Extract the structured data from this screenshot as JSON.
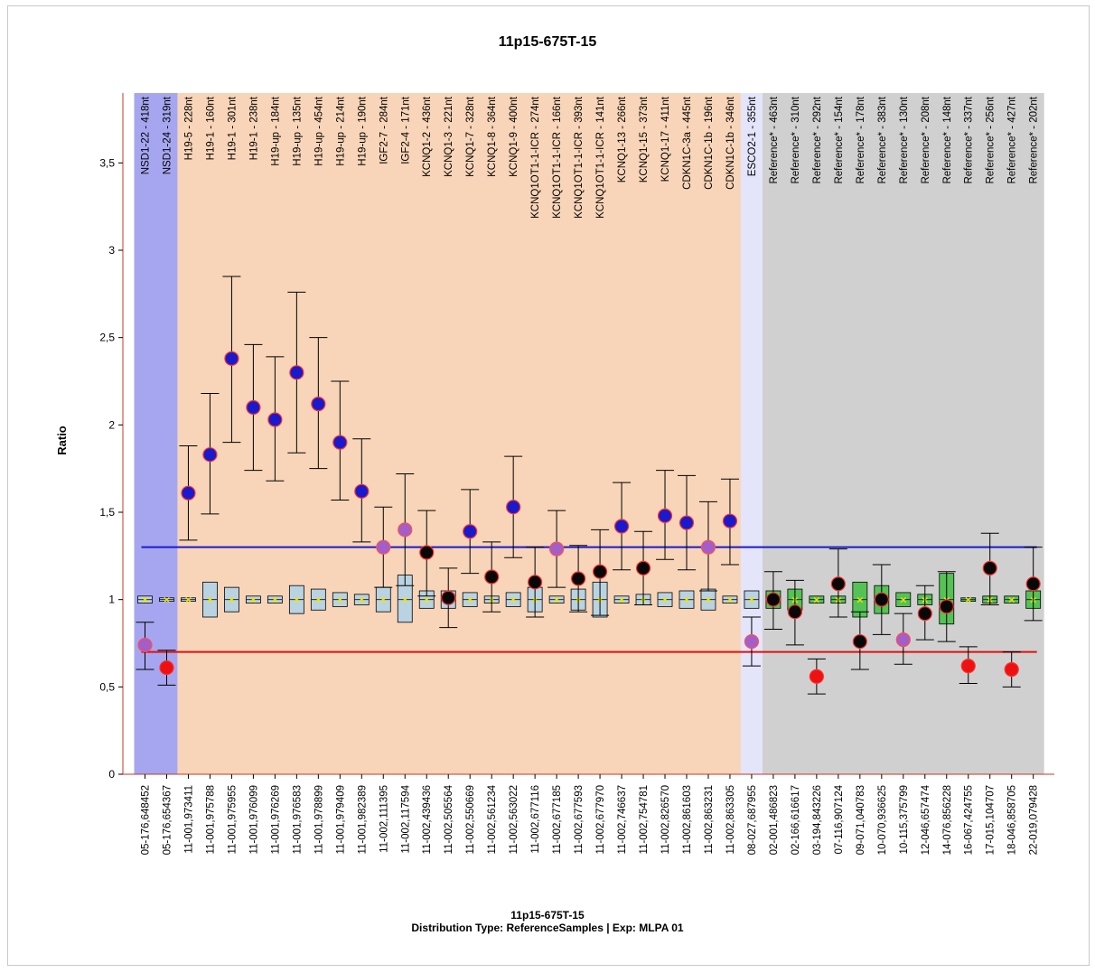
{
  "chart_data": {
    "type": "scatter",
    "title": "11p15-675T-15",
    "ylabel": "Ratio",
    "xlabel": "",
    "ylim": [
      0,
      3.9
    ],
    "yticks": [
      "0",
      "0,5",
      "1",
      "1,5",
      "2",
      "2,5",
      "3",
      "3,5"
    ],
    "footer": {
      "title": "11p15-675T-15",
      "subtitle": "Distribution Type: ReferenceSamples | Exp: MLPA 01"
    },
    "thresholds": [
      {
        "value": 1.3,
        "color": "#1a1acc"
      },
      {
        "value": 0.7,
        "color": "#dd1111"
      }
    ],
    "probes": [
      {
        "name": "NSD1-22 - 418nt",
        "pos": "05-176,648452",
        "ratio": 0.74,
        "lo": 0.6,
        "hi": 0.87,
        "box": [
          0.98,
          1.02
        ],
        "group": "nsd1",
        "dot": "purple"
      },
      {
        "name": "NSD1-24 - 319nt",
        "pos": "05-176,654367",
        "ratio": 0.61,
        "lo": 0.51,
        "hi": 0.71,
        "box": [
          0.99,
          1.01
        ],
        "group": "nsd1",
        "dot": "red"
      },
      {
        "name": "H19-5 - 228nt",
        "pos": "11-001,973411",
        "ratio": 1.61,
        "lo": 1.34,
        "hi": 1.88,
        "box": [
          0.99,
          1.01
        ],
        "group": "target",
        "dot": "blue"
      },
      {
        "name": "H19-1 - 160nt",
        "pos": "11-001,975788",
        "ratio": 1.83,
        "lo": 1.49,
        "hi": 2.18,
        "box": [
          0.9,
          1.1
        ],
        "group": "target",
        "dot": "blue"
      },
      {
        "name": "H19-1 - 301nt",
        "pos": "11-001,975955",
        "ratio": 2.38,
        "lo": 1.9,
        "hi": 2.85,
        "box": [
          0.93,
          1.07
        ],
        "group": "target",
        "dot": "blue"
      },
      {
        "name": "H19-1 - 238nt",
        "pos": "11-001,976099",
        "ratio": 2.1,
        "lo": 1.74,
        "hi": 2.46,
        "box": [
          0.98,
          1.02
        ],
        "group": "target",
        "dot": "blue"
      },
      {
        "name": "H19-up - 184nt",
        "pos": "11-001,976269",
        "ratio": 2.03,
        "lo": 1.68,
        "hi": 2.39,
        "box": [
          0.98,
          1.02
        ],
        "group": "target",
        "dot": "blue"
      },
      {
        "name": "H19-up - 135nt",
        "pos": "11-001,976583",
        "ratio": 2.3,
        "lo": 1.84,
        "hi": 2.76,
        "box": [
          0.92,
          1.08
        ],
        "group": "target",
        "dot": "blue"
      },
      {
        "name": "H19-up - 454nt",
        "pos": "11-001,978899",
        "ratio": 2.12,
        "lo": 1.75,
        "hi": 2.5,
        "box": [
          0.94,
          1.06
        ],
        "group": "target",
        "dot": "blue"
      },
      {
        "name": "H19-up - 214nt",
        "pos": "11-001,979409",
        "ratio": 1.9,
        "lo": 1.57,
        "hi": 2.25,
        "box": [
          0.96,
          1.04
        ],
        "group": "target",
        "dot": "blue"
      },
      {
        "name": "H19-up - 190nt",
        "pos": "11-001,982389",
        "ratio": 1.62,
        "lo": 1.33,
        "hi": 1.92,
        "box": [
          0.97,
          1.03
        ],
        "group": "target",
        "dot": "blue"
      },
      {
        "name": "IGF2-7 - 284nt",
        "pos": "11-002,111395",
        "ratio": 1.3,
        "lo": 1.07,
        "hi": 1.53,
        "box": [
          0.93,
          1.07
        ],
        "group": "target",
        "dot": "purple"
      },
      {
        "name": "IGF2-4 - 171nt",
        "pos": "11-002,117594",
        "ratio": 1.4,
        "lo": 1.08,
        "hi": 1.72,
        "box": [
          0.87,
          1.14
        ],
        "group": "target",
        "dot": "purple"
      },
      {
        "name": "KCNQ1-2 - 436nt",
        "pos": "11-002,439436",
        "ratio": 1.27,
        "lo": 1.02,
        "hi": 1.51,
        "box": [
          0.95,
          1.05
        ],
        "group": "target",
        "dot": "black"
      },
      {
        "name": "KCNQ1-3 - 221nt",
        "pos": "11-002,505564",
        "ratio": 1.01,
        "lo": 0.84,
        "hi": 1.18,
        "box": [
          0.95,
          1.05
        ],
        "group": "target",
        "dot": "black"
      },
      {
        "name": "KCNQ1-7 - 328nt",
        "pos": "11-002,550669",
        "ratio": 1.39,
        "lo": 1.15,
        "hi": 1.63,
        "box": [
          0.96,
          1.04
        ],
        "group": "target",
        "dot": "blue"
      },
      {
        "name": "KCNQ1-8 - 364nt",
        "pos": "11-002,561234",
        "ratio": 1.13,
        "lo": 0.93,
        "hi": 1.33,
        "box": [
          0.98,
          1.02
        ],
        "group": "target",
        "dot": "black"
      },
      {
        "name": "KCNQ1-9 - 400nt",
        "pos": "11-002,563022",
        "ratio": 1.53,
        "lo": 1.24,
        "hi": 1.82,
        "box": [
          0.96,
          1.04
        ],
        "group": "target",
        "dot": "blue"
      },
      {
        "name": "KCNQ1OT1-1-ICR - 274nt",
        "pos": "11-002,677116",
        "ratio": 1.1,
        "lo": 0.9,
        "hi": 1.3,
        "box": [
          0.93,
          1.07
        ],
        "group": "target",
        "dot": "black"
      },
      {
        "name": "KCNQ1OT1-1-ICR - 166nt",
        "pos": "11-002,677185",
        "ratio": 1.29,
        "lo": 1.07,
        "hi": 1.51,
        "box": [
          0.98,
          1.02
        ],
        "group": "target",
        "dot": "purple"
      },
      {
        "name": "KCNQ1OT1-1-ICR - 393nt",
        "pos": "11-002,677593",
        "ratio": 1.12,
        "lo": 0.93,
        "hi": 1.31,
        "box": [
          0.94,
          1.06
        ],
        "group": "target",
        "dot": "black"
      },
      {
        "name": "KCNQ1OT1-1-ICR - 141nt",
        "pos": "11-002,677970",
        "ratio": 1.16,
        "lo": 0.91,
        "hi": 1.4,
        "box": [
          0.9,
          1.1
        ],
        "group": "target",
        "dot": "black"
      },
      {
        "name": "KCNQ1-13 - 266nt",
        "pos": "11-002,746637",
        "ratio": 1.42,
        "lo": 1.17,
        "hi": 1.67,
        "box": [
          0.98,
          1.02
        ],
        "group": "target",
        "dot": "blue"
      },
      {
        "name": "KCNQ1-15 - 373nt",
        "pos": "11-002,754781",
        "ratio": 1.18,
        "lo": 0.97,
        "hi": 1.39,
        "box": [
          0.97,
          1.03
        ],
        "group": "target",
        "dot": "black"
      },
      {
        "name": "KCNQ1-17 - 411nt",
        "pos": "11-002,826570",
        "ratio": 1.48,
        "lo": 1.23,
        "hi": 1.74,
        "box": [
          0.96,
          1.04
        ],
        "group": "target",
        "dot": "blue"
      },
      {
        "name": "CDKN1C-3a - 445nt",
        "pos": "11-002,861603",
        "ratio": 1.44,
        "lo": 1.17,
        "hi": 1.71,
        "box": [
          0.95,
          1.05
        ],
        "group": "target",
        "dot": "blue"
      },
      {
        "name": "CDKN1C-1b - 196nt",
        "pos": "11-002,863231",
        "ratio": 1.3,
        "lo": 1.05,
        "hi": 1.56,
        "box": [
          0.94,
          1.06
        ],
        "group": "target",
        "dot": "purple"
      },
      {
        "name": "CDKN1C-1b - 346nt",
        "pos": "11-002,863305",
        "ratio": 1.45,
        "lo": 1.2,
        "hi": 1.69,
        "box": [
          0.98,
          1.02
        ],
        "group": "target",
        "dot": "blue"
      },
      {
        "name": "ESCO2-1 - 355nt",
        "pos": "08-027,687955",
        "ratio": 0.76,
        "lo": 0.62,
        "hi": 0.9,
        "box": [
          0.95,
          1.05
        ],
        "group": "esco2",
        "dot": "purple"
      },
      {
        "name": "Reference* - 463nt",
        "pos": "02-001,486823",
        "ratio": 1.0,
        "lo": 0.83,
        "hi": 1.16,
        "box": [
          0.95,
          1.05
        ],
        "group": "reference",
        "dot": "black"
      },
      {
        "name": "Reference* - 310nt",
        "pos": "02-166,616617",
        "ratio": 0.93,
        "lo": 0.74,
        "hi": 1.11,
        "box": [
          0.94,
          1.06
        ],
        "group": "reference",
        "dot": "black"
      },
      {
        "name": "Reference* - 292nt",
        "pos": "03-194,843226",
        "ratio": 0.56,
        "lo": 0.46,
        "hi": 0.66,
        "box": [
          0.98,
          1.02
        ],
        "group": "reference",
        "dot": "red"
      },
      {
        "name": "Reference* - 154nt",
        "pos": "07-116,907124",
        "ratio": 1.09,
        "lo": 0.9,
        "hi": 1.29,
        "box": [
          0.98,
          1.02
        ],
        "group": "reference",
        "dot": "black"
      },
      {
        "name": "Reference* - 178nt",
        "pos": "09-071,040783",
        "ratio": 0.76,
        "lo": 0.6,
        "hi": 0.93,
        "box": [
          0.9,
          1.1
        ],
        "group": "reference",
        "dot": "black"
      },
      {
        "name": "Reference* - 383nt",
        "pos": "10-070,936625",
        "ratio": 1.0,
        "lo": 0.8,
        "hi": 1.2,
        "box": [
          0.92,
          1.08
        ],
        "group": "reference",
        "dot": "black"
      },
      {
        "name": "Reference* - 130nt",
        "pos": "10-115,375799",
        "ratio": 0.77,
        "lo": 0.63,
        "hi": 0.92,
        "box": [
          0.96,
          1.04
        ],
        "group": "reference",
        "dot": "purple"
      },
      {
        "name": "Reference* - 208nt",
        "pos": "12-046,657474",
        "ratio": 0.92,
        "lo": 0.77,
        "hi": 1.08,
        "box": [
          0.97,
          1.03
        ],
        "group": "reference",
        "dot": "black"
      },
      {
        "name": "Reference* - 148nt",
        "pos": "14-076,856228",
        "ratio": 0.96,
        "lo": 0.76,
        "hi": 1.16,
        "box": [
          0.86,
          1.15
        ],
        "group": "reference",
        "dot": "black"
      },
      {
        "name": "Reference* - 337nt",
        "pos": "16-067,424755",
        "ratio": 0.62,
        "lo": 0.52,
        "hi": 0.73,
        "box": [
          0.99,
          1.01
        ],
        "group": "reference",
        "dot": "red"
      },
      {
        "name": "Reference* - 256nt",
        "pos": "17-015,104707",
        "ratio": 1.18,
        "lo": 0.97,
        "hi": 1.38,
        "box": [
          0.98,
          1.02
        ],
        "group": "reference",
        "dot": "black"
      },
      {
        "name": "Reference* - 427nt",
        "pos": "18-046,858705",
        "ratio": 0.6,
        "lo": 0.5,
        "hi": 0.7,
        "box": [
          0.98,
          1.02
        ],
        "group": "reference",
        "dot": "red"
      },
      {
        "name": "Reference* - 202nt",
        "pos": "22-019,079428",
        "ratio": 1.09,
        "lo": 0.88,
        "hi": 1.3,
        "box": [
          0.95,
          1.05
        ],
        "group": "reference",
        "dot": "black"
      }
    ]
  }
}
